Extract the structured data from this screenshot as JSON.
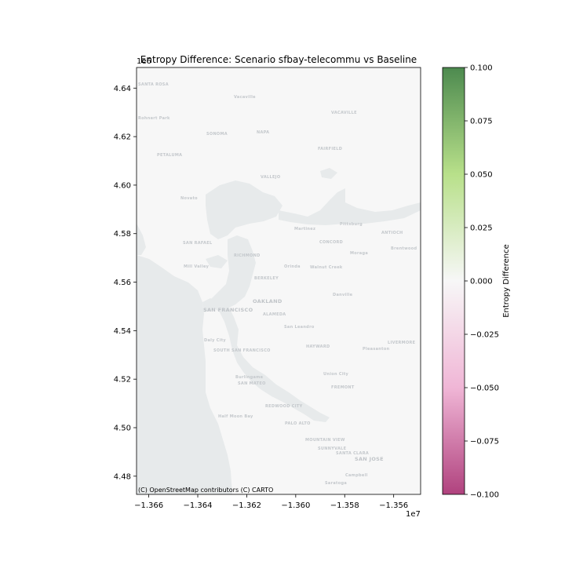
{
  "figure": {
    "title": "Entropy Difference: Scenario sfbay-telecommu vs Baseline",
    "attribution": "(C) OpenStreetMap contributors (C) CARTO"
  },
  "axes": {
    "x": {
      "ticks": [
        -13.66,
        -13.64,
        -13.62,
        -13.6,
        -13.58,
        -13.56
      ],
      "tick_labels": [
        "−1.366",
        "−1.364",
        "−1.362",
        "−1.360",
        "−1.358",
        "−1.356"
      ],
      "range": [
        -13.665,
        -13.549
      ],
      "offset_label": "1e7"
    },
    "y": {
      "ticks": [
        4.48,
        4.5,
        4.52,
        4.54,
        4.56,
        4.58,
        4.6,
        4.62,
        4.64
      ],
      "tick_labels": [
        "4.48",
        "4.50",
        "4.52",
        "4.54",
        "4.56",
        "4.58",
        "4.60",
        "4.62",
        "4.64"
      ],
      "range": [
        4.4725,
        4.6485
      ],
      "offset_label": "1e6"
    }
  },
  "colorbar": {
    "label": "Entropy Difference",
    "cmap": "PiYG",
    "range": [
      -0.1,
      0.1
    ],
    "ticks": [
      -0.1,
      -0.075,
      -0.05,
      -0.025,
      0.0,
      0.025,
      0.05,
      0.075,
      0.1
    ],
    "tick_labels": [
      "−0.100",
      "−0.075",
      "−0.050",
      "−0.025",
      "0.000",
      "0.025",
      "0.050",
      "0.075",
      "0.100"
    ],
    "colors": {
      "top": "#4d8a4f",
      "upper_mid": "#b8e08a",
      "center": "#f7f7f7",
      "lower_mid": "#f0b6d6",
      "bottom": "#b0427e"
    }
  },
  "map": {
    "water_color": "#e7eaeb",
    "land_color": "#f7f7f7",
    "place_labels": [
      {
        "text": "SANTA ROSA"
      },
      {
        "text": "Rohnert Park"
      },
      {
        "text": "PETALUMA"
      },
      {
        "text": "SONOMA"
      },
      {
        "text": "NAPA"
      },
      {
        "text": "Vacaville"
      },
      {
        "text": "VACAVILLE"
      },
      {
        "text": "FAIRFIELD"
      },
      {
        "text": "VALLEJO"
      },
      {
        "text": "Novato"
      },
      {
        "text": "SAN RAFAEL"
      },
      {
        "text": "RICHMOND"
      },
      {
        "text": "CONCORD"
      },
      {
        "text": "ANTIOCH"
      },
      {
        "text": "Mill Valley"
      },
      {
        "text": "BERKELEY"
      },
      {
        "text": "OAKLAND"
      },
      {
        "text": "SAN FRANCISCO"
      },
      {
        "text": "ALAMEDA"
      },
      {
        "text": "Daly City"
      },
      {
        "text": "SOUTH SAN FRANCISCO"
      },
      {
        "text": "HAYWARD"
      },
      {
        "text": "LIVERMORE"
      },
      {
        "text": "San Leandro"
      },
      {
        "text": "Pleasanton"
      },
      {
        "text": "Danville"
      },
      {
        "text": "Walnut Creek"
      },
      {
        "text": "Union City"
      },
      {
        "text": "FREMONT"
      },
      {
        "text": "Burlingame"
      },
      {
        "text": "SAN MATEO"
      },
      {
        "text": "REDWOOD CITY"
      },
      {
        "text": "PALO ALTO"
      },
      {
        "text": "Half Moon Bay"
      },
      {
        "text": "MOUNTAIN VIEW"
      },
      {
        "text": "SUNNYVALE"
      },
      {
        "text": "SANTA CLARA"
      },
      {
        "text": "SAN JOSE"
      },
      {
        "text": "Campbell"
      },
      {
        "text": "Saratoga"
      },
      {
        "text": "Brentwood"
      },
      {
        "text": "Martinez"
      },
      {
        "text": "Pittsburg"
      },
      {
        "text": "Orinda"
      },
      {
        "text": "Moraga"
      }
    ]
  }
}
